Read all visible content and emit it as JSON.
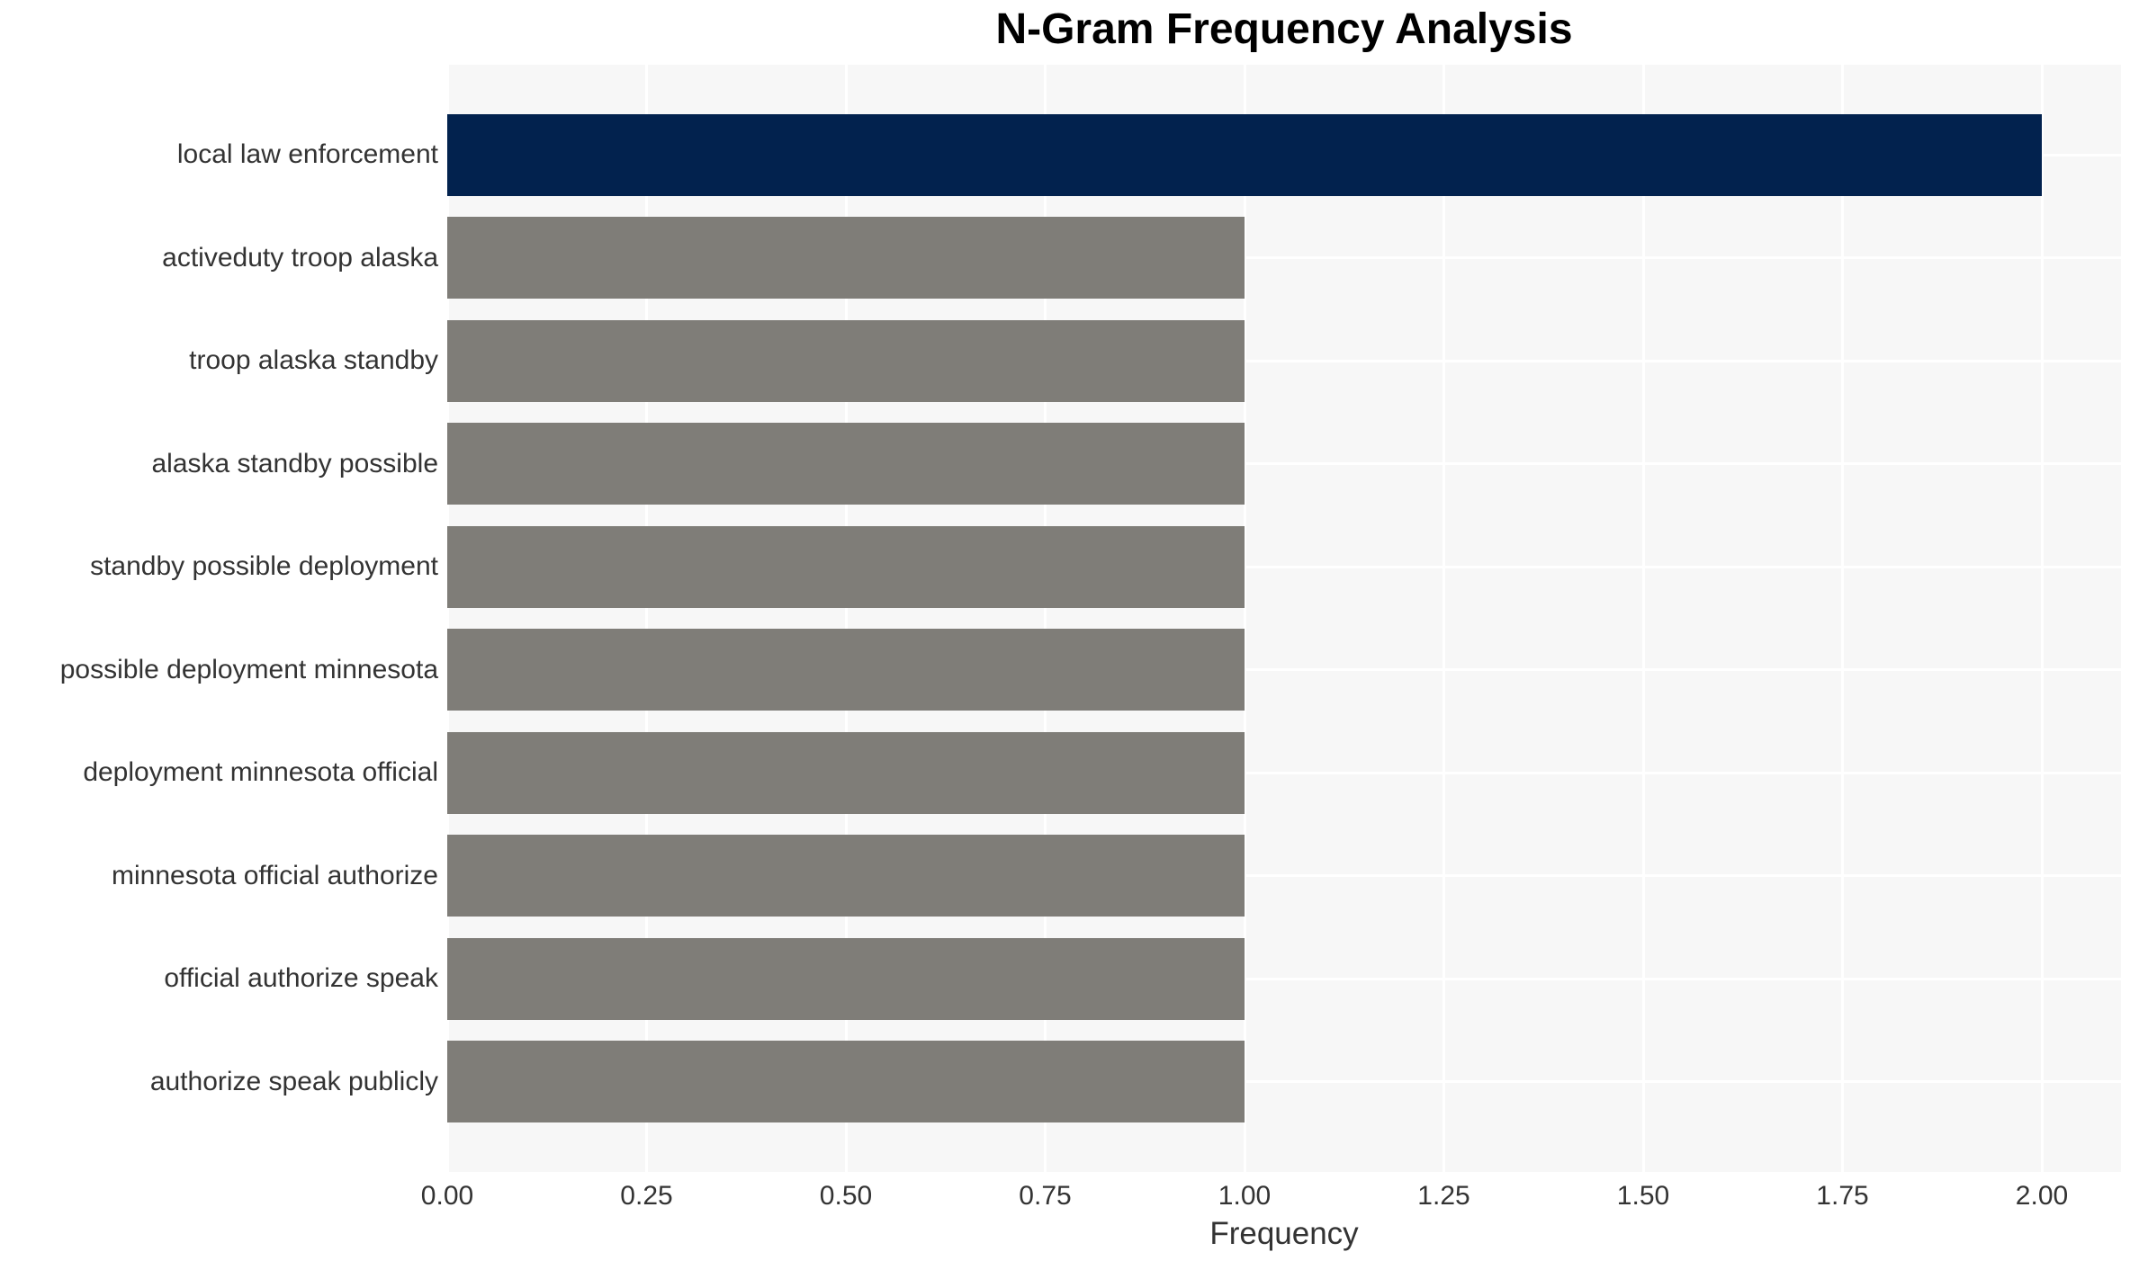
{
  "chart_data": {
    "type": "bar",
    "orientation": "horizontal",
    "title": "N-Gram Frequency Analysis",
    "xlabel": "Frequency",
    "ylabel": "",
    "categories": [
      "local law enforcement",
      "activeduty troop alaska",
      "troop alaska standby",
      "alaska standby possible",
      "standby possible deployment",
      "possible deployment minnesota",
      "deployment minnesota official",
      "minnesota official authorize",
      "official authorize speak",
      "authorize speak publicly"
    ],
    "values": [
      2.0,
      1.0,
      1.0,
      1.0,
      1.0,
      1.0,
      1.0,
      1.0,
      1.0,
      1.0
    ],
    "highlight_index": 0,
    "xticks": [
      {
        "value": 0.0,
        "label": "0.00"
      },
      {
        "value": 0.25,
        "label": "0.25"
      },
      {
        "value": 0.5,
        "label": "0.50"
      },
      {
        "value": 0.75,
        "label": "0.75"
      },
      {
        "value": 1.0,
        "label": "1.00"
      },
      {
        "value": 1.25,
        "label": "1.25"
      },
      {
        "value": 1.5,
        "label": "1.50"
      },
      {
        "value": 1.75,
        "label": "1.75"
      },
      {
        "value": 2.0,
        "label": "2.00"
      }
    ],
    "xlim": [
      0,
      2.1
    ],
    "grid": true,
    "legend": false,
    "colors": {
      "highlight_bar": "#02224e",
      "default_bar": "#7f7d78",
      "panel_background": "#f7f7f7",
      "gridline": "#ffffff",
      "tick_text": "#333333",
      "title_text": "#000000"
    }
  }
}
